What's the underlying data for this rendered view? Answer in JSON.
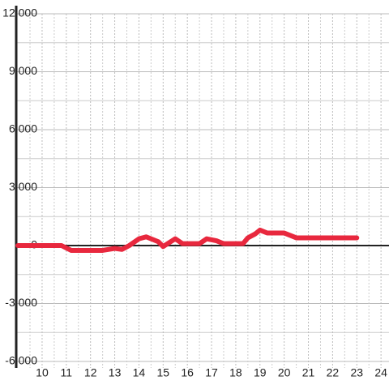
{
  "chart_data": {
    "type": "line",
    "x": [
      9,
      10.8,
      11.2,
      12.5,
      13,
      13.3,
      13.6,
      14,
      14.3,
      14.8,
      15,
      15.5,
      15.8,
      16.5,
      16.8,
      17.2,
      17.5,
      18.3,
      18.5,
      18.8,
      19,
      19.3,
      20,
      20.5,
      23
    ],
    "series": [
      {
        "color": "#e8283e",
        "values": [
          0,
          0,
          -250,
          -250,
          -150,
          -200,
          0,
          350,
          450,
          200,
          -50,
          350,
          100,
          100,
          350,
          250,
          100,
          100,
          400,
          600,
          800,
          650,
          650,
          400,
          400
        ]
      }
    ],
    "xlim": [
      8.93,
      24.33
    ],
    "xticks": [
      10,
      11,
      12,
      13,
      14,
      15,
      16,
      17,
      18,
      19,
      20,
      21,
      22,
      23,
      24
    ],
    "xticks_minor": [
      9.5,
      10.5,
      11.5,
      12.5,
      13.5,
      14.5,
      15.5,
      16.5,
      17.5,
      18.5,
      19.5,
      20.5,
      21.5,
      22.5,
      23.5
    ],
    "ylim": [
      -6000,
      12000
    ],
    "yticks": [
      {
        "value": -6000,
        "label": "-6,000"
      },
      {
        "value": -3000,
        "label": "-3,000"
      },
      0,
      {
        "value": 3000,
        "label": "3,000"
      },
      {
        "value": 6000,
        "label": "6,000"
      },
      {
        "value": 9000,
        "label": "9,000"
      },
      {
        "value": 12000,
        "label": "12,000"
      }
    ],
    "yticks_minor": [
      -4500,
      -1500,
      1500,
      4500,
      7500,
      10500
    ],
    "grid": true
  }
}
